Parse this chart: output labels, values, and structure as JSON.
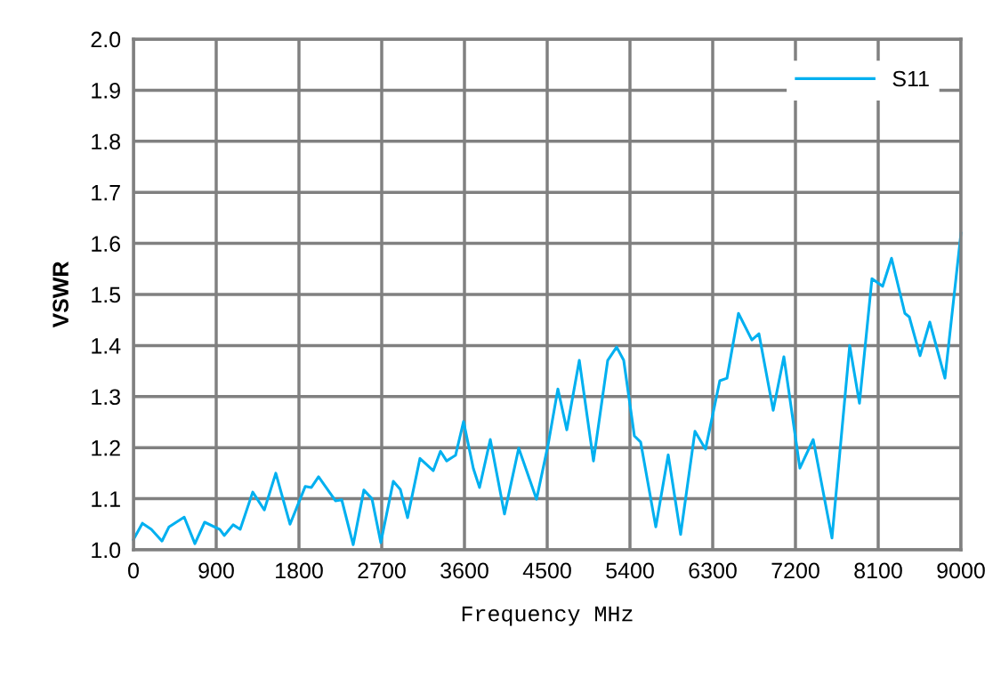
{
  "chart_data": {
    "type": "line",
    "xlabel": "Frequency MHz",
    "ylabel": "VSWR",
    "xlim": [
      0,
      9000
    ],
    "xticks": [
      0,
      900,
      1800,
      2700,
      3600,
      4500,
      5400,
      6300,
      7200,
      8100,
      9000
    ],
    "ylim": [
      1.0,
      2.0
    ],
    "yticks": [
      {
        "value": 1.0,
        "label": "1.0"
      },
      {
        "value": 1.1,
        "label": "1.1"
      },
      {
        "value": 1.2,
        "label": "1.2"
      },
      {
        "value": 1.3,
        "label": "1.3"
      },
      {
        "value": 1.4,
        "label": "1.4"
      },
      {
        "value": 1.5,
        "label": "1.5"
      },
      {
        "value": 1.6,
        "label": "1.6"
      },
      {
        "value": 1.7,
        "label": "1.7"
      },
      {
        "value": 1.8,
        "label": "1.8"
      },
      {
        "value": 1.9,
        "label": "1.9"
      },
      {
        "value": 2.0,
        "label": "2.0"
      }
    ],
    "grid": true,
    "legend": "top right",
    "marker": "none",
    "line_style": "solid",
    "series": [
      {
        "name": "S11",
        "color": "#00b0f0",
        "x": [
          0,
          97,
          194,
          310,
          387,
          552,
          668,
          774,
          939,
          987,
          1084,
          1161,
          1297,
          1423,
          1548,
          1703,
          1868,
          1935,
          2013,
          2197,
          2265,
          2390,
          2506,
          2594,
          2690,
          2826,
          2903,
          2981,
          3116,
          3261,
          3339,
          3406,
          3503,
          3590,
          3697,
          3764,
          3881,
          4035,
          4190,
          4384,
          4510,
          4616,
          4713,
          4849,
          5003,
          5158,
          5255,
          5332,
          5448,
          5516,
          5681,
          5816,
          5951,
          6107,
          6222,
          6377,
          6455,
          6580,
          6726,
          6803,
          6958,
          7074,
          7248,
          7393,
          7597,
          7790,
          7896,
          8032,
          8148,
          8245,
          8390,
          8438,
          8555,
          8661,
          8826,
          9000
        ],
        "values": [
          1.02,
          1.052,
          1.04,
          1.017,
          1.045,
          1.064,
          1.012,
          1.054,
          1.04,
          1.028,
          1.049,
          1.04,
          1.113,
          1.078,
          1.15,
          1.05,
          1.124,
          1.122,
          1.143,
          1.096,
          1.098,
          1.01,
          1.117,
          1.1,
          1.014,
          1.134,
          1.118,
          1.063,
          1.179,
          1.155,
          1.193,
          1.174,
          1.185,
          1.251,
          1.159,
          1.122,
          1.216,
          1.07,
          1.199,
          1.099,
          1.206,
          1.315,
          1.235,
          1.371,
          1.174,
          1.371,
          1.397,
          1.371,
          1.223,
          1.211,
          1.045,
          1.186,
          1.03,
          1.232,
          1.197,
          1.331,
          1.336,
          1.463,
          1.411,
          1.423,
          1.273,
          1.378,
          1.16,
          1.216,
          1.023,
          1.4,
          1.287,
          1.531,
          1.516,
          1.571,
          1.463,
          1.456,
          1.38,
          1.446,
          1.336,
          1.62
        ]
      }
    ]
  }
}
